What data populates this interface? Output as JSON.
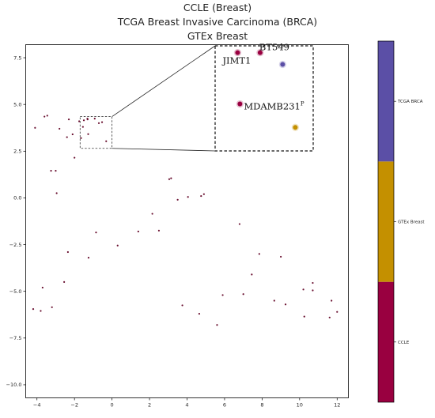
{
  "chart_data": {
    "type": "scatter",
    "title_lines": [
      "CCLE (Breast)",
      "TCGA Breast Invasive Carcinoma (BRCA)",
      "GTEx Breast"
    ],
    "xlabel": "",
    "ylabel": "",
    "xlim": [
      -4.6,
      12.6
    ],
    "ylim": [
      -10.7,
      8.2
    ],
    "x_ticks": [
      -4,
      -2,
      0,
      2,
      4,
      6,
      8,
      10,
      12
    ],
    "y_ticks": [
      -10.0,
      -7.5,
      -5.0,
      -2.5,
      0.0,
      2.5,
      5.0,
      7.5
    ],
    "x_tick_labels": [
      "−4",
      "−2",
      "0",
      "2",
      "4",
      "6",
      "8",
      "10",
      "12"
    ],
    "y_tick_labels": [
      "−10.0",
      "−7.5",
      "−5.0",
      "−2.5",
      "0.0",
      "2.5",
      "5.0",
      "7.5"
    ],
    "grid": false,
    "colors": {
      "CCLE": "#990040",
      "GTEx Breast": "#c49000",
      "TCGA BRCA": "#5b4fa6"
    },
    "points": [
      {
        "x": -3.6,
        "y": 4.35
      },
      {
        "x": -3.45,
        "y": 4.4
      },
      {
        "x": -4.1,
        "y": 3.75
      },
      {
        "x": -2.8,
        "y": 3.7
      },
      {
        "x": -2.3,
        "y": 4.2
      },
      {
        "x": -2.4,
        "y": 3.25
      },
      {
        "x": -2.1,
        "y": 3.4
      },
      {
        "x": -2.0,
        "y": 2.15
      },
      {
        "x": -1.75,
        "y": 4.1
      },
      {
        "x": -1.55,
        "y": 3.8
      },
      {
        "x": -1.5,
        "y": 4.15
      },
      {
        "x": -1.3,
        "y": 4.2
      },
      {
        "x": -1.65,
        "y": 3.2
      },
      {
        "x": -0.7,
        "y": 4.0
      },
      {
        "x": -3.25,
        "y": 1.45
      },
      {
        "x": -3.0,
        "y": 1.45
      },
      {
        "x": -2.95,
        "y": 0.25
      },
      {
        "x": 3.05,
        "y": 1.0
      },
      {
        "x": 3.15,
        "y": 1.05
      },
      {
        "x": 3.5,
        "y": -0.1
      },
      {
        "x": 4.05,
        "y": 0.05
      },
      {
        "x": 4.75,
        "y": 0.1
      },
      {
        "x": 4.9,
        "y": 0.2
      },
      {
        "x": 2.15,
        "y": -0.85
      },
      {
        "x": 6.8,
        "y": -1.4
      },
      {
        "x": -0.85,
        "y": -1.85
      },
      {
        "x": 1.4,
        "y": -1.8
      },
      {
        "x": 2.5,
        "y": -1.75
      },
      {
        "x": 0.3,
        "y": -2.55
      },
      {
        "x": -2.35,
        "y": -2.9
      },
      {
        "x": -1.25,
        "y": -3.2
      },
      {
        "x": 7.85,
        "y": -3.0
      },
      {
        "x": 9.0,
        "y": -3.15
      },
      {
        "x": 7.45,
        "y": -4.1
      },
      {
        "x": -2.55,
        "y": -4.5
      },
      {
        "x": -3.7,
        "y": -4.8
      },
      {
        "x": 10.7,
        "y": -4.55
      },
      {
        "x": 10.7,
        "y": -4.95
      },
      {
        "x": 10.2,
        "y": -4.9
      },
      {
        "x": 5.9,
        "y": -5.2
      },
      {
        "x": 7.0,
        "y": -5.15
      },
      {
        "x": 8.65,
        "y": -5.5
      },
      {
        "x": 9.25,
        "y": -5.7
      },
      {
        "x": 11.7,
        "y": -5.5
      },
      {
        "x": 3.75,
        "y": -5.75
      },
      {
        "x": -4.2,
        "y": -5.95
      },
      {
        "x": -3.8,
        "y": -6.05
      },
      {
        "x": -3.2,
        "y": -5.85
      },
      {
        "x": 4.65,
        "y": -6.2
      },
      {
        "x": 10.25,
        "y": -6.35
      },
      {
        "x": 11.6,
        "y": -6.4
      },
      {
        "x": 12.0,
        "y": -6.1
      },
      {
        "x": 5.6,
        "y": -6.8
      }
    ],
    "zoom_region": {
      "xlim": [
        -1.7,
        0.0
      ],
      "ylim": [
        2.65,
        4.35
      ]
    },
    "inset_points": [
      {
        "label": "BT549",
        "x": -0.92,
        "y": 4.24,
        "category": "CCLE"
      },
      {
        "label": "JIMT1",
        "x": -1.31,
        "y": 4.24,
        "category": "CCLE"
      },
      {
        "label": "MDAMB231",
        "label_superscript": "P",
        "x": -1.27,
        "y": 3.41,
        "category": "CCLE"
      },
      {
        "label": "",
        "x": -0.53,
        "y": 4.05,
        "category": "TCGA BRCA"
      },
      {
        "label": "",
        "x": -0.31,
        "y": 3.03,
        "category": "GTEx Breast"
      }
    ],
    "colorbar": {
      "categories": [
        "CCLE",
        "GTEx Breast",
        "TCGA BRCA"
      ],
      "labels": [
        "CCLE",
        "GTEx Breast",
        "TCGA BRCA"
      ]
    }
  }
}
